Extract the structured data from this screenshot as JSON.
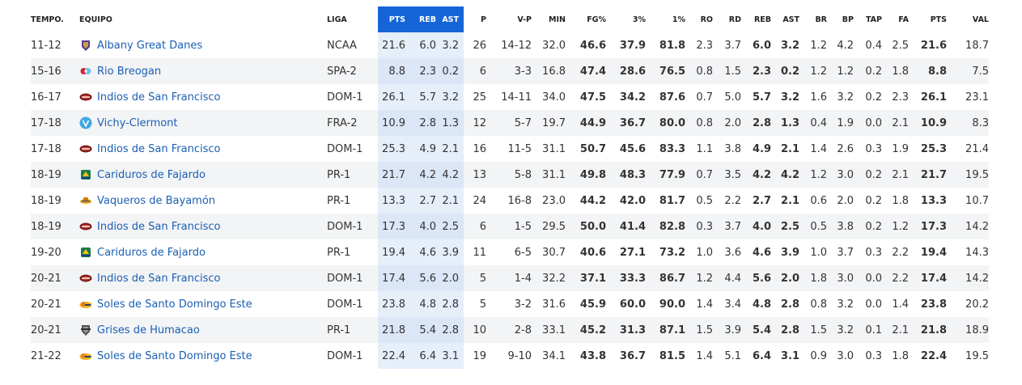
{
  "headers": {
    "season": "TEMPO.",
    "team": "EQUIPO",
    "league": "LIGA",
    "pts_avg": "PTS",
    "reb_avg": "REB",
    "ast_avg": "AST",
    "p": "P",
    "wl": "V-P",
    "min": "MIN",
    "fg": "FG%",
    "three": "3%",
    "ft": "1%",
    "ro": "RO",
    "rd": "RD",
    "reb": "REB",
    "ast": "AST",
    "br": "BR",
    "bp": "BP",
    "tap": "TAP",
    "fa": "FA",
    "pts": "PTS",
    "val": "VAL"
  },
  "rows": [
    {
      "season": "11-12",
      "team": "Albany Great Danes",
      "crest": "albany-crest",
      "league": "NCAA",
      "pts_avg": "21.6",
      "reb_avg": "6.0",
      "ast_avg": "3.2",
      "p": "26",
      "wl": "14-12",
      "min": "32.0",
      "fg": "46.6",
      "three": "37.9",
      "ft": "81.8",
      "ro": "2.3",
      "rd": "3.7",
      "reb": "6.0",
      "ast": "3.2",
      "br": "1.2",
      "bp": "4.2",
      "tap": "0.4",
      "fa": "2.5",
      "pts": "21.6",
      "val": "18.7"
    },
    {
      "season": "15-16",
      "team": "Rio Breogan",
      "crest": "breogan-crest",
      "league": "SPA-2",
      "pts_avg": "8.8",
      "reb_avg": "2.3",
      "ast_avg": "0.2",
      "p": "6",
      "wl": "3-3",
      "min": "16.8",
      "fg": "47.4",
      "three": "28.6",
      "ft": "76.5",
      "ro": "0.8",
      "rd": "1.5",
      "reb": "2.3",
      "ast": "0.2",
      "br": "1.2",
      "bp": "1.2",
      "tap": "0.2",
      "fa": "1.8",
      "pts": "8.8",
      "val": "7.5"
    },
    {
      "season": "16-17",
      "team": "Indios de San Francisco",
      "crest": "indios-crest",
      "league": "DOM-1",
      "pts_avg": "26.1",
      "reb_avg": "5.7",
      "ast_avg": "3.2",
      "p": "25",
      "wl": "14-11",
      "min": "34.0",
      "fg": "47.5",
      "three": "34.2",
      "ft": "87.6",
      "ro": "0.7",
      "rd": "5.0",
      "reb": "5.7",
      "ast": "3.2",
      "br": "1.6",
      "bp": "3.2",
      "tap": "0.2",
      "fa": "2.3",
      "pts": "26.1",
      "val": "23.1"
    },
    {
      "season": "17-18",
      "team": "Vichy-Clermont",
      "crest": "vichy-crest",
      "league": "FRA-2",
      "pts_avg": "10.9",
      "reb_avg": "2.8",
      "ast_avg": "1.3",
      "p": "12",
      "wl": "5-7",
      "min": "19.7",
      "fg": "44.9",
      "three": "36.7",
      "ft": "80.0",
      "ro": "0.8",
      "rd": "2.0",
      "reb": "2.8",
      "ast": "1.3",
      "br": "0.4",
      "bp": "1.9",
      "tap": "0.0",
      "fa": "2.1",
      "pts": "10.9",
      "val": "8.3"
    },
    {
      "season": "17-18",
      "team": "Indios de San Francisco",
      "crest": "indios-crest",
      "league": "DOM-1",
      "pts_avg": "25.3",
      "reb_avg": "4.9",
      "ast_avg": "2.1",
      "p": "16",
      "wl": "11-5",
      "min": "31.1",
      "fg": "50.7",
      "three": "45.6",
      "ft": "83.3",
      "ro": "1.1",
      "rd": "3.8",
      "reb": "4.9",
      "ast": "2.1",
      "br": "1.4",
      "bp": "2.6",
      "tap": "0.3",
      "fa": "1.9",
      "pts": "25.3",
      "val": "21.4"
    },
    {
      "season": "18-19",
      "team": "Cariduros de Fajardo",
      "crest": "cariduros-crest",
      "league": "PR-1",
      "pts_avg": "21.7",
      "reb_avg": "4.2",
      "ast_avg": "4.2",
      "p": "13",
      "wl": "5-8",
      "min": "31.1",
      "fg": "49.8",
      "three": "48.3",
      "ft": "77.9",
      "ro": "0.7",
      "rd": "3.5",
      "reb": "4.2",
      "ast": "4.2",
      "br": "1.2",
      "bp": "3.0",
      "tap": "0.2",
      "fa": "2.1",
      "pts": "21.7",
      "val": "19.5"
    },
    {
      "season": "18-19",
      "team": "Vaqueros de Bayamón",
      "crest": "vaqueros-crest",
      "league": "PR-1",
      "pts_avg": "13.3",
      "reb_avg": "2.7",
      "ast_avg": "2.1",
      "p": "24",
      "wl": "16-8",
      "min": "23.0",
      "fg": "44.2",
      "three": "42.0",
      "ft": "81.7",
      "ro": "0.5",
      "rd": "2.2",
      "reb": "2.7",
      "ast": "2.1",
      "br": "0.6",
      "bp": "2.0",
      "tap": "0.2",
      "fa": "1.8",
      "pts": "13.3",
      "val": "10.7"
    },
    {
      "season": "18-19",
      "team": "Indios de San Francisco",
      "crest": "indios-crest",
      "league": "DOM-1",
      "pts_avg": "17.3",
      "reb_avg": "4.0",
      "ast_avg": "2.5",
      "p": "6",
      "wl": "1-5",
      "min": "29.5",
      "fg": "50.0",
      "three": "41.4",
      "ft": "82.8",
      "ro": "0.3",
      "rd": "3.7",
      "reb": "4.0",
      "ast": "2.5",
      "br": "0.5",
      "bp": "3.8",
      "tap": "0.2",
      "fa": "1.2",
      "pts": "17.3",
      "val": "14.2"
    },
    {
      "season": "19-20",
      "team": "Cariduros de Fajardo",
      "crest": "cariduros-crest",
      "league": "PR-1",
      "pts_avg": "19.4",
      "reb_avg": "4.6",
      "ast_avg": "3.9",
      "p": "11",
      "wl": "6-5",
      "min": "30.7",
      "fg": "40.6",
      "three": "27.1",
      "ft": "73.2",
      "ro": "1.0",
      "rd": "3.6",
      "reb": "4.6",
      "ast": "3.9",
      "br": "1.0",
      "bp": "3.7",
      "tap": "0.3",
      "fa": "2.2",
      "pts": "19.4",
      "val": "14.3"
    },
    {
      "season": "20-21",
      "team": "Indios de San Francisco",
      "crest": "indios-crest",
      "league": "DOM-1",
      "pts_avg": "17.4",
      "reb_avg": "5.6",
      "ast_avg": "2.0",
      "p": "5",
      "wl": "1-4",
      "min": "32.2",
      "fg": "37.1",
      "three": "33.3",
      "ft": "86.7",
      "ro": "1.2",
      "rd": "4.4",
      "reb": "5.6",
      "ast": "2.0",
      "br": "1.8",
      "bp": "3.0",
      "tap": "0.0",
      "fa": "2.2",
      "pts": "17.4",
      "val": "14.2"
    },
    {
      "season": "20-21",
      "team": "Soles de Santo Domingo Este",
      "crest": "soles-crest",
      "league": "DOM-1",
      "pts_avg": "23.8",
      "reb_avg": "4.8",
      "ast_avg": "2.8",
      "p": "5",
      "wl": "3-2",
      "min": "31.6",
      "fg": "45.9",
      "three": "60.0",
      "ft": "90.0",
      "ro": "1.4",
      "rd": "3.4",
      "reb": "4.8",
      "ast": "2.8",
      "br": "0.8",
      "bp": "3.2",
      "tap": "0.0",
      "fa": "1.4",
      "pts": "23.8",
      "val": "20.2"
    },
    {
      "season": "20-21",
      "team": "Grises de Humacao",
      "crest": "grises-crest",
      "league": "PR-1",
      "pts_avg": "21.8",
      "reb_avg": "5.4",
      "ast_avg": "2.8",
      "p": "10",
      "wl": "2-8",
      "min": "33.1",
      "fg": "45.2",
      "three": "31.3",
      "ft": "87.1",
      "ro": "1.5",
      "rd": "3.9",
      "reb": "5.4",
      "ast": "2.8",
      "br": "1.5",
      "bp": "3.2",
      "tap": "0.1",
      "fa": "2.1",
      "pts": "21.8",
      "val": "18.9"
    },
    {
      "season": "21-22",
      "team": "Soles de Santo Domingo Este",
      "crest": "soles-crest",
      "league": "DOM-1",
      "pts_avg": "22.4",
      "reb_avg": "6.4",
      "ast_avg": "3.1",
      "p": "19",
      "wl": "9-10",
      "min": "34.1",
      "fg": "43.8",
      "three": "36.7",
      "ft": "81.5",
      "ro": "1.4",
      "rd": "5.1",
      "reb": "6.4",
      "ast": "3.1",
      "br": "0.9",
      "bp": "3.0",
      "tap": "0.3",
      "fa": "1.8",
      "pts": "22.4",
      "val": "19.5"
    }
  ]
}
